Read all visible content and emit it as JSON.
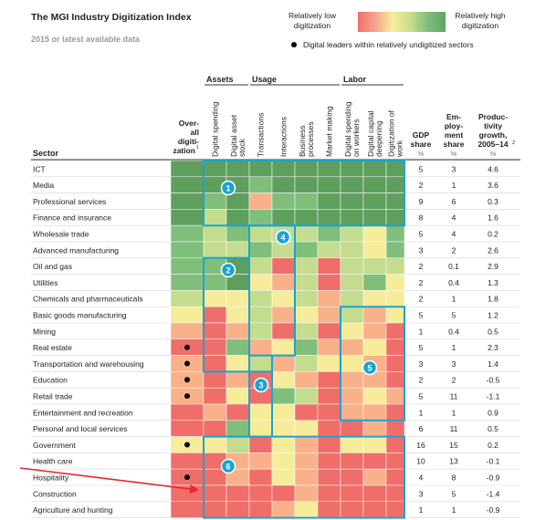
{
  "title": "The MGI Industry Digitization Index",
  "subtitle": "2015 or latest available data",
  "legend": {
    "low_line1": "Relatively low",
    "low_line2": "digitization",
    "high_line1": "Relatively high",
    "high_line2": "digitization",
    "dot_label": "Digital leaders within relatively undigitized sectors",
    "gradient": [
      "#ef6f6c",
      "#f6a58c",
      "#f6ee9a",
      "#c6dd8a",
      "#7fbf7b",
      "#5fa55f"
    ]
  },
  "groups": [
    {
      "label": "Assets"
    },
    {
      "label": "Usage"
    },
    {
      "label": "Labor"
    }
  ],
  "sector_header": "Sector",
  "overall_header": [
    "Over-",
    "all",
    "digiti-",
    "zation",
    "1"
  ],
  "col_headers": [
    [
      "Digital spending"
    ],
    [
      "Digital asset",
      "stock"
    ],
    [
      "Transactions"
    ],
    [
      "Interactions"
    ],
    [
      "Business",
      "processes"
    ],
    [
      "Market making"
    ],
    [
      "Digital spending",
      "on workers"
    ],
    [
      "Digital capital",
      "deepening"
    ],
    [
      "Digitization of",
      "work"
    ]
  ],
  "gdp_header": [
    "GDP",
    "share",
    "%"
  ],
  "emp_header": [
    "Em-",
    "ploy-",
    "ment",
    "share",
    "%"
  ],
  "prod_header": [
    "Produc-",
    "tivity",
    "growth,",
    "2005–14",
    "2",
    "%"
  ],
  "colors": {
    "dg": "#5e9f5e",
    "mg": "#7fbf7b",
    "lg": "#c3dc8e",
    "y": "#f6ec99",
    "o": "#f8b189",
    "r": "#ef6e6a",
    "frame": "#1aa3d3",
    "arrow": "#e8262a",
    "dot": "#000000"
  },
  "chart_data": {
    "type": "heatmap",
    "title": "The MGI Industry Digitization Index",
    "columns": [
      "Overall digitization",
      "Digital spending",
      "Digital asset stock",
      "Transactions",
      "Interactions",
      "Business processes",
      "Market making",
      "Digital spending on workers",
      "Digital capital deepening",
      "Digitization of work"
    ],
    "rows": [
      {
        "sector": "ICT",
        "cells": [
          "dg",
          "dg",
          "dg",
          "dg",
          "dg",
          "dg",
          "dg",
          "dg",
          "dg",
          "dg"
        ],
        "leader": false,
        "gdp": "5",
        "emp": "3",
        "prod": "4.6"
      },
      {
        "sector": "Media",
        "cells": [
          "dg",
          "dg",
          "dg",
          "mg",
          "dg",
          "dg",
          "dg",
          "dg",
          "dg",
          "dg"
        ],
        "leader": false,
        "gdp": "2",
        "emp": "1",
        "prod": "3.6"
      },
      {
        "sector": "Professional services",
        "cells": [
          "dg",
          "mg",
          "dg",
          "o",
          "mg",
          "mg",
          "dg",
          "dg",
          "dg",
          "dg"
        ],
        "leader": false,
        "gdp": "9",
        "emp": "6",
        "prod": "0.3"
      },
      {
        "sector": "Finance and insurance",
        "cells": [
          "dg",
          "lg",
          "dg",
          "mg",
          "dg",
          "dg",
          "dg",
          "dg",
          "dg",
          "dg"
        ],
        "leader": false,
        "gdp": "8",
        "emp": "4",
        "prod": "1.6"
      },
      {
        "sector": "Wholesale trade",
        "cells": [
          "mg",
          "lg",
          "mg",
          "lg",
          "lg",
          "lg",
          "mg",
          "lg",
          "y",
          "mg"
        ],
        "leader": false,
        "gdp": "5",
        "emp": "4",
        "prod": "0.2"
      },
      {
        "sector": "Advanced manufacturing",
        "cells": [
          "mg",
          "lg",
          "lg",
          "mg",
          "lg",
          "mg",
          "lg",
          "lg",
          "y",
          "mg"
        ],
        "leader": false,
        "gdp": "3",
        "emp": "2",
        "prod": "2.6"
      },
      {
        "sector": "Oil and gas",
        "cells": [
          "mg",
          "mg",
          "dg",
          "lg",
          "r",
          "lg",
          "r",
          "lg",
          "lg",
          "lg"
        ],
        "leader": false,
        "gdp": "2",
        "emp": "0.1",
        "prod": "2.9"
      },
      {
        "sector": "Utilities",
        "cells": [
          "mg",
          "mg",
          "dg",
          "y",
          "o",
          "lg",
          "r",
          "lg",
          "mg",
          "y"
        ],
        "leader": false,
        "gdp": "2",
        "emp": "0.4",
        "prod": "1.3"
      },
      {
        "sector": "Chemicals and pharmaceuticals",
        "cells": [
          "lg",
          "y",
          "y",
          "lg",
          "y",
          "lg",
          "o",
          "lg",
          "y",
          "y"
        ],
        "leader": false,
        "gdp": "2",
        "emp": "1",
        "prod": "1.8"
      },
      {
        "sector": "Basic goods manufacturing",
        "cells": [
          "y",
          "r",
          "y",
          "lg",
          "o",
          "y",
          "o",
          "lg",
          "o",
          "y"
        ],
        "leader": false,
        "gdp": "5",
        "emp": "5",
        "prod": "1.2"
      },
      {
        "sector": "Mining",
        "cells": [
          "o",
          "r",
          "o",
          "lg",
          "r",
          "lg",
          "r",
          "y",
          "o",
          "r"
        ],
        "leader": false,
        "gdp": "1",
        "emp": "0.4",
        "prod": "0.5"
      },
      {
        "sector": "Real estate",
        "cells": [
          "r",
          "r",
          "mg",
          "o",
          "y",
          "mg",
          "o",
          "o",
          "y",
          "r"
        ],
        "leader": true,
        "gdp": "5",
        "emp": "1",
        "prod": "2.3"
      },
      {
        "sector": "Transportation and warehousing",
        "cells": [
          "o",
          "r",
          "y",
          "lg",
          "o",
          "lg",
          "y",
          "y",
          "o",
          "r"
        ],
        "leader": true,
        "gdp": "3",
        "emp": "3",
        "prod": "1.4"
      },
      {
        "sector": "Education",
        "cells": [
          "o",
          "r",
          "o",
          "r",
          "y",
          "o",
          "r",
          "o",
          "o",
          "r"
        ],
        "leader": true,
        "gdp": "2",
        "emp": "2",
        "prod": "-0.5"
      },
      {
        "sector": "Retail trade",
        "cells": [
          "o",
          "r",
          "y",
          "r",
          "mg",
          "lg",
          "r",
          "o",
          "y",
          "o"
        ],
        "leader": true,
        "gdp": "5",
        "emp": "11",
        "prod": "-1.1"
      },
      {
        "sector": "Entertainment and recreation",
        "cells": [
          "r",
          "o",
          "r",
          "y",
          "y",
          "r",
          "r",
          "o",
          "o",
          "r"
        ],
        "leader": false,
        "gdp": "1",
        "emp": "1",
        "prod": "0.9"
      },
      {
        "sector": "Personal and local services",
        "cells": [
          "r",
          "r",
          "mg",
          "y",
          "y",
          "y",
          "r",
          "r",
          "o",
          "r"
        ],
        "leader": false,
        "gdp": "6",
        "emp": "11",
        "prod": "0.5"
      },
      {
        "sector": "Government",
        "cells": [
          "y",
          "y",
          "lg",
          "r",
          "y",
          "o",
          "r",
          "y",
          "y",
          "r"
        ],
        "leader": true,
        "gdp": "16",
        "emp": "15",
        "prod": "0.2"
      },
      {
        "sector": "Health care",
        "cells": [
          "r",
          "r",
          "o",
          "o",
          "y",
          "o",
          "r",
          "r",
          "r",
          "r"
        ],
        "leader": false,
        "gdp": "10",
        "emp": "13",
        "prod": "-0.1"
      },
      {
        "sector": "Hospitality",
        "cells": [
          "r",
          "r",
          "o",
          "r",
          "y",
          "o",
          "r",
          "r",
          "o",
          "r"
        ],
        "leader": true,
        "gdp": "4",
        "emp": "8",
        "prod": "-0.9"
      },
      {
        "sector": "Construction",
        "cells": [
          "r",
          "r",
          "r",
          "r",
          "r",
          "o",
          "r",
          "r",
          "r",
          "r"
        ],
        "leader": false,
        "gdp": "3",
        "emp": "5",
        "prod": "-1.4"
      },
      {
        "sector": "Agriculture and hunting",
        "cells": [
          "r",
          "r",
          "r",
          "r",
          "o",
          "y",
          "r",
          "r",
          "r",
          "r"
        ],
        "leader": false,
        "gdp": "1",
        "emp": "1",
        "prod": "-0.9"
      }
    ],
    "callouts": [
      "1",
      "2",
      "3",
      "4",
      "5",
      "6"
    ]
  }
}
